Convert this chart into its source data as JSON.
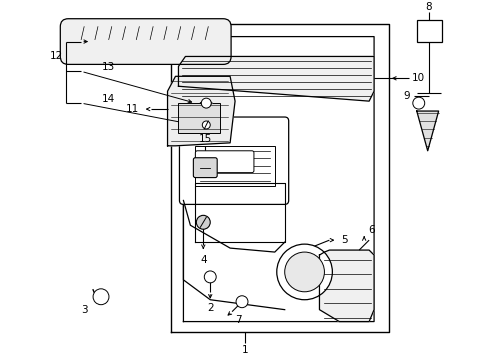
{
  "bg_color": "#ffffff",
  "line_color": "#000000",
  "fig_width": 4.89,
  "fig_height": 3.6,
  "dpi": 100,
  "label_fs": 7.5
}
